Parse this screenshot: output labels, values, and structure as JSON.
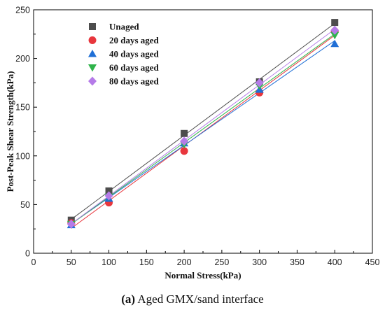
{
  "chart_data": {
    "type": "scatter",
    "xlabel": "Normal Stress(kPa)",
    "ylabel": "Post-Peak Shear Strength(kPa)",
    "xlim": [
      0,
      450
    ],
    "ylim": [
      0,
      250
    ],
    "xticks": [
      0,
      50,
      100,
      150,
      200,
      250,
      300,
      350,
      400,
      450
    ],
    "yticks": [
      0,
      50,
      100,
      150,
      200,
      250
    ],
    "grid": false,
    "legend_position": "top-left",
    "trend_lines": true,
    "x": [
      50,
      100,
      200,
      300,
      400
    ],
    "series": [
      {
        "name": "Unaged",
        "marker": "square",
        "color": "#4d4d4d",
        "values": [
          34,
          64,
          123,
          176,
          237
        ]
      },
      {
        "name": "20 days aged",
        "marker": "circle",
        "color": "#e8363d",
        "values": [
          31,
          52,
          105,
          165,
          228
        ]
      },
      {
        "name": "40 days aged",
        "marker": "triangle-up",
        "color": "#1f6fd6",
        "values": [
          29,
          56,
          113,
          168,
          215
        ]
      },
      {
        "name": "60 days aged",
        "marker": "triangle-down",
        "color": "#2fb34a",
        "values": [
          30,
          58,
          112,
          172,
          224
        ]
      },
      {
        "name": "80 days aged",
        "marker": "diamond",
        "color": "#b57be8",
        "values": [
          30,
          59,
          115,
          175,
          229
        ]
      }
    ]
  },
  "caption": {
    "label": "(a)",
    "text": " Aged GMX/sand interface"
  }
}
